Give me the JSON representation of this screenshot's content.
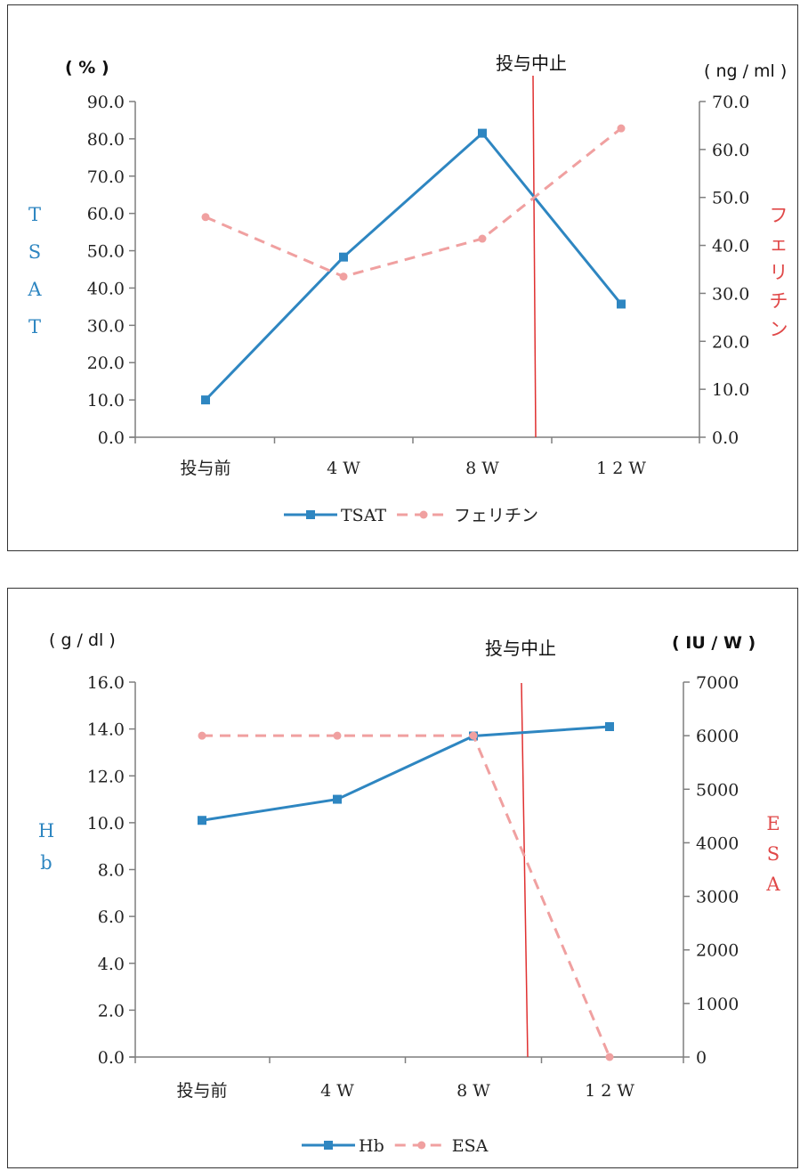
{
  "colors": {
    "series_primary": "#2e86c1",
    "series_secondary": "#f0a0a0",
    "stop_line": "#e03030",
    "left_label": "#2e86c1",
    "right_label": "#e04848",
    "axis": "#7f7f7f"
  },
  "chart_data": [
    {
      "type": "line",
      "title": "",
      "categories": [
        "投与前",
        "4 W",
        "8 W",
        "1 2 W"
      ],
      "left_axis": {
        "unit": "( % )",
        "label": [
          "T",
          "S",
          "A",
          "T"
        ],
        "ylim": [
          0,
          90
        ],
        "ticks": [
          "0.0",
          "10.0",
          "20.0",
          "30.0",
          "40.0",
          "50.0",
          "60.0",
          "70.0",
          "80.0",
          "90.0"
        ]
      },
      "right_axis": {
        "unit": "( ng / ml )",
        "label": [
          "フ",
          "ェ",
          "リ",
          "チ",
          "ン"
        ],
        "ylim": [
          0,
          70
        ],
        "ticks": [
          "0.0",
          "10.0",
          "20.0",
          "30.0",
          "40.0",
          "50.0",
          "60.0",
          "70.0"
        ]
      },
      "series": [
        {
          "name": "TSAT",
          "axis": "left",
          "style": "solid",
          "marker": "square",
          "values": [
            10.0,
            48.3,
            81.5,
            35.7
          ]
        },
        {
          "name": "フェリチン",
          "axis": "right",
          "style": "dashed",
          "marker": "circle",
          "values": [
            45.9,
            33.5,
            41.4,
            64.4
          ]
        }
      ],
      "annotation": {
        "text": "投与中止",
        "between": [
          2,
          3
        ]
      },
      "legend": "bottom",
      "grid": false
    },
    {
      "type": "line",
      "title": "",
      "categories": [
        "投与前",
        "4 W",
        "8 W",
        "1 2 W"
      ],
      "left_axis": {
        "unit": "( g / dl )",
        "label": [
          "H",
          "b"
        ],
        "ylim": [
          0,
          16
        ],
        "ticks": [
          "0.0",
          "2.0",
          "4.0",
          "6.0",
          "8.0",
          "10.0",
          "12.0",
          "14.0",
          "16.0"
        ]
      },
      "right_axis": {
        "unit": "( IU / W )",
        "label": [
          "E",
          "S",
          "A"
        ],
        "ylim": [
          0,
          7000
        ],
        "ticks": [
          "0",
          "1000",
          "2000",
          "3000",
          "4000",
          "5000",
          "6000",
          "7000"
        ]
      },
      "series": [
        {
          "name": "Hb",
          "axis": "left",
          "style": "solid",
          "marker": "square",
          "values": [
            10.1,
            11.0,
            13.7,
            14.1
          ]
        },
        {
          "name": "ESA",
          "axis": "right",
          "style": "dashed",
          "marker": "circle",
          "values": [
            6000,
            6000,
            6000,
            0
          ]
        }
      ],
      "annotation": {
        "text": "投与中止",
        "between": [
          2,
          3
        ]
      },
      "legend": "bottom",
      "grid": false
    }
  ]
}
